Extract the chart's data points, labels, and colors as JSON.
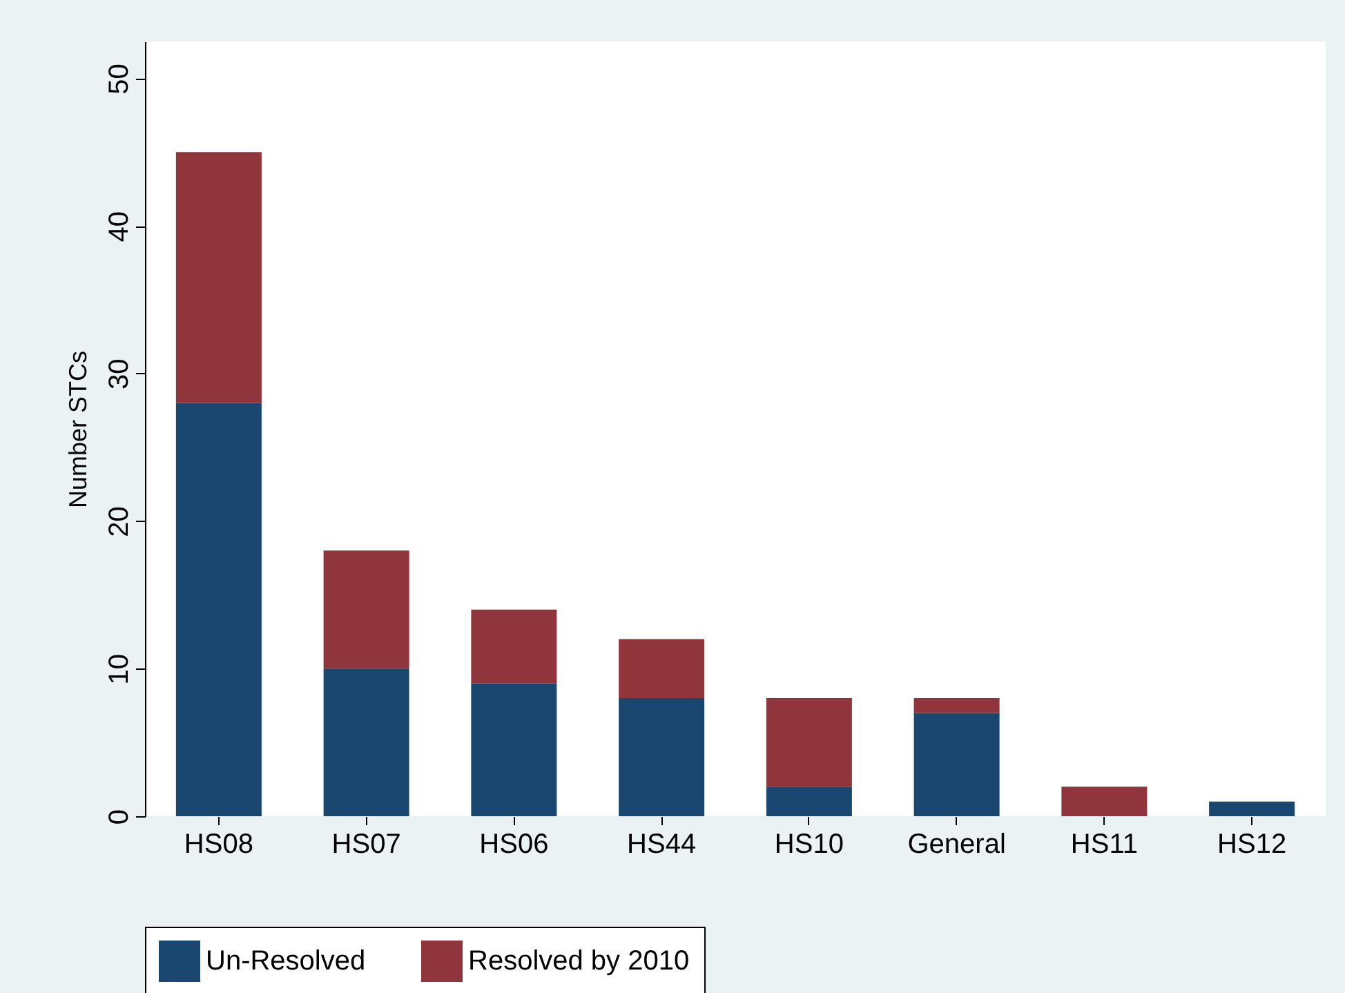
{
  "chart_data": {
    "type": "bar",
    "ylabel": "Number STCs",
    "categories": [
      "HS08",
      "HS07",
      "HS06",
      "HS44",
      "HS10",
      "General",
      "HS11",
      "HS12"
    ],
    "series": [
      {
        "name": "Un-Resolved",
        "color": "#1a476f",
        "values": [
          28,
          10,
          9,
          8,
          2,
          7,
          0,
          1
        ]
      },
      {
        "name": "Resolved by 2010",
        "color": "#90353b",
        "values": [
          17,
          8,
          5,
          4,
          6,
          1,
          2,
          0
        ]
      }
    ],
    "stacked": true,
    "ylim": [
      0,
      52.5
    ],
    "yticks": [
      0,
      10,
      20,
      30,
      40,
      50
    ],
    "legend": "bottom",
    "grid": false
  }
}
